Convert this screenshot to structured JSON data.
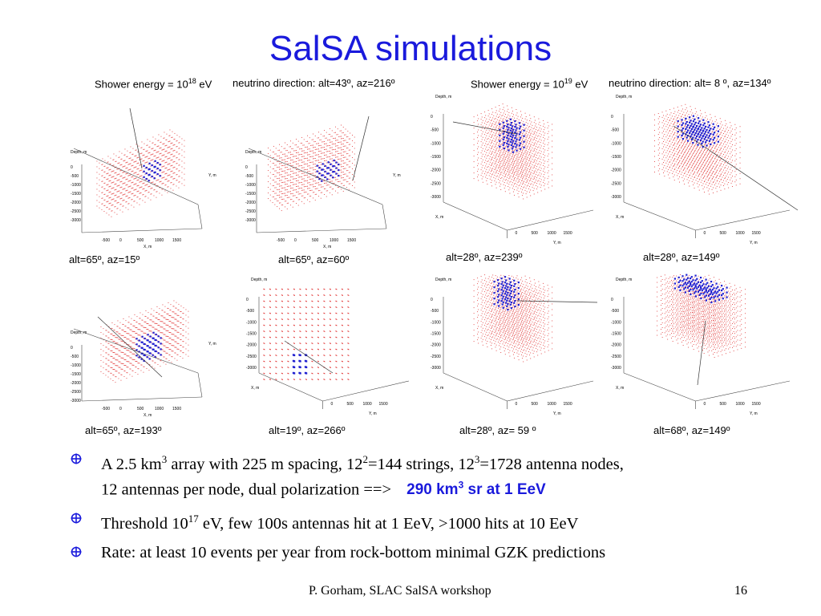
{
  "title": "SalSA simulations",
  "headers": [
    {
      "base": "Shower energy = 10",
      "exp": "18",
      "unit": " eV"
    },
    {
      "text": "neutrino direction: alt=43º, az=216º"
    },
    {
      "base": "Shower energy = 10",
      "exp": "19",
      "unit": " eV"
    },
    {
      "text": "neutrino direction: alt= 8 º, az=134º"
    }
  ],
  "panels": [
    {
      "caption": "alt=65º, az=15º"
    },
    {
      "caption": "alt=65º, az=60º"
    },
    {
      "caption": "alt=28º, az=239º"
    },
    {
      "caption": "alt=28º, az=149º"
    },
    {
      "caption": "alt=65º, az=193º"
    },
    {
      "caption": "alt=19º, az=266º"
    },
    {
      "caption": "alt=28º, az= 59 º"
    },
    {
      "caption": "alt=68º, az=149º"
    }
  ],
  "axis_labels": {
    "depth": "Depth, m",
    "x": "X, m",
    "y": "Y, m"
  },
  "depth_ticks": [
    "0",
    "-500",
    "-1000",
    "-1500",
    "-2000",
    "-2500",
    "-3000"
  ],
  "xy_ticks": [
    "-1500",
    "-1000",
    "-500",
    "0",
    "500",
    "1000",
    "1500"
  ],
  "bullets": {
    "b1": {
      "t1": "A 2.5 km",
      "s1": "3",
      "t2": " array with 225 m spacing, 12",
      "s2": "2",
      "t3": "=144 strings, 12",
      "s3": "3",
      "t4": "=1728 antenna nodes,",
      "line2": "12 antennas per node, dual polarization   ==>",
      "hl1": "290 km",
      "hls": "3",
      "hl2": " sr at 1 EeV"
    },
    "b2": {
      "t1": "Threshold 10",
      "s1": "17",
      "t2": " eV, few 100s antennas hit at 1 EeV, >1000 hits at 10 EeV"
    },
    "b3": {
      "t1": "Rate: at least 10 events per year from rock-bottom minimal GZK predictions"
    }
  },
  "footer": {
    "left": "P. Gorham, SLAC SalSA workshop",
    "page": "16"
  },
  "colors": {
    "title": "#1a1adc",
    "grid_dots": "#e03030",
    "hit_dots": "#2020d0",
    "bullet": "#1a1adc"
  }
}
